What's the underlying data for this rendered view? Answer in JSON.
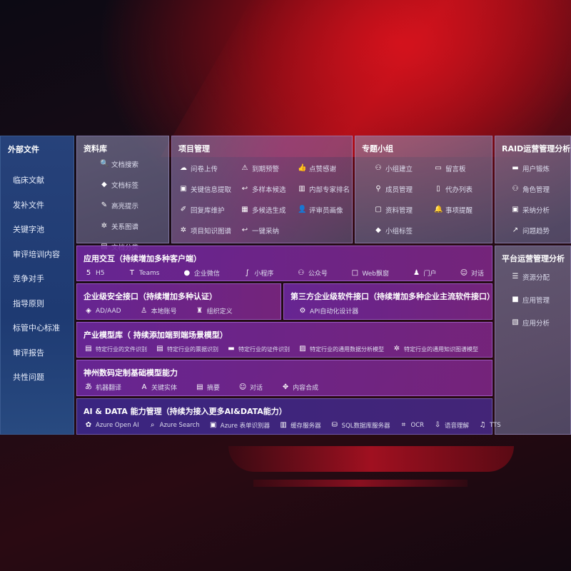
{
  "sidebar": {
    "title": "外部文件",
    "items": [
      "临床文献",
      "发补文件",
      "关键字池",
      "审评培训内容",
      "竞争对手",
      "指导原则",
      "标管中心标准",
      "审评报告",
      "共性问题"
    ]
  },
  "library": {
    "title": "资料库",
    "items": [
      {
        "icon": "doc-search-icon",
        "label": "文档搜索"
      },
      {
        "icon": "tag-icon",
        "label": "文档标签"
      },
      {
        "icon": "pen-icon",
        "label": "高亮提示"
      },
      {
        "icon": "graph-icon",
        "label": "关系图谱"
      },
      {
        "icon": "doc-category-icon",
        "label": "文档分类"
      }
    ]
  },
  "project": {
    "title": "项目管理",
    "items": [
      {
        "icon": "cloud-upload-icon",
        "label": "问卷上传"
      },
      {
        "icon": "alarm-icon",
        "label": "到期预警"
      },
      {
        "icon": "thumbs-up-icon",
        "label": "点赞感谢"
      },
      {
        "icon": "extract-icon",
        "label": "关键信息提取"
      },
      {
        "icon": "reply-icon",
        "label": "多样本候选"
      },
      {
        "icon": "ranking-icon",
        "label": "内部专家排名"
      },
      {
        "icon": "edit-icon",
        "label": "回复库维护"
      },
      {
        "icon": "puzzle-icon",
        "label": "多候选生成"
      },
      {
        "icon": "user-icon",
        "label": "评审员画像"
      },
      {
        "icon": "graph-icon",
        "label": "项目知识图谱"
      },
      {
        "icon": "reply-icon",
        "label": "一键采纳"
      }
    ]
  },
  "group": {
    "title": "专题小组",
    "items": [
      {
        "icon": "users-icon",
        "label": "小组建立"
      },
      {
        "icon": "bbs-icon",
        "label": "留言板"
      },
      {
        "icon": "user-add-icon",
        "label": "成员管理"
      },
      {
        "icon": "clipboard-icon",
        "label": "代办列表"
      },
      {
        "icon": "folder-icon",
        "label": "资料管理"
      },
      {
        "icon": "bell-icon",
        "label": "事项提醒"
      },
      {
        "icon": "tag-icon",
        "label": "小组标签"
      }
    ]
  },
  "raid": {
    "title": "RAID运营管理分析",
    "items": [
      {
        "icon": "id-card-icon",
        "label": "用户锻炼"
      },
      {
        "icon": "users-icon",
        "label": "角色管理"
      },
      {
        "icon": "qa-icon",
        "label": "采纳分析"
      },
      {
        "icon": "trend-icon",
        "label": "问题趋势"
      }
    ]
  },
  "platform": {
    "title": "平台运营管理分析",
    "items": [
      {
        "icon": "list-icon",
        "label": "资源分配"
      },
      {
        "icon": "apps-icon",
        "label": "应用管理"
      },
      {
        "icon": "analysis-icon",
        "label": "应用分析"
      }
    ]
  },
  "app": {
    "title": "应用交互（持续增加多种客户端）",
    "items": [
      {
        "icon": "html5-icon",
        "label": "H5"
      },
      {
        "icon": "teams-icon",
        "label": "Teams"
      },
      {
        "icon": "wechat-icon",
        "label": "企业微信"
      },
      {
        "icon": "miniprogram-icon",
        "label": "小程序"
      },
      {
        "icon": "users-icon",
        "label": "公众号"
      },
      {
        "icon": "window-icon",
        "label": "Web飘窗"
      },
      {
        "icon": "portal-icon",
        "label": "门户"
      },
      {
        "icon": "chat-icon",
        "label": "对话"
      }
    ]
  },
  "security": {
    "title": "企业级安全接口（持续增加多种认证）",
    "items": [
      {
        "icon": "ad-icon",
        "label": "AD/AAD"
      },
      {
        "icon": "account-icon",
        "label": "本地账号"
      },
      {
        "icon": "org-icon",
        "label": "组织定义"
      }
    ]
  },
  "thirdparty": {
    "title": "第三方企业级软件接口（持续增加多种企业主流软件接口）",
    "items": [
      {
        "icon": "gear-icon",
        "label": "API自动化设计器"
      }
    ]
  },
  "industry": {
    "title": "产业模型库（ 持续添加端到端场景模型）",
    "items": [
      {
        "icon": "doc-icon",
        "label": "特定行业的文件识别"
      },
      {
        "icon": "receipt-icon",
        "label": "特定行业的票据识别"
      },
      {
        "icon": "id-card-icon",
        "label": "特定行业的证件识别"
      },
      {
        "icon": "chart-icon",
        "label": "特定行业的通用数据分析模型"
      },
      {
        "icon": "graph-icon",
        "label": "特定行业的通用知识图谱模型"
      }
    ]
  },
  "base": {
    "title": "神州数码定制基础模型能力",
    "items": [
      {
        "icon": "translate-icon",
        "label": "机器翻译"
      },
      {
        "icon": "entity-icon",
        "label": "关键实体"
      },
      {
        "icon": "summary-icon",
        "label": "摘要"
      },
      {
        "icon": "chat-icon",
        "label": "对话"
      },
      {
        "icon": "compose-icon",
        "label": "内容合成"
      }
    ]
  },
  "aidata": {
    "title": "AI & DATA 能力管理（持续为接入更多AI&DATA能力）",
    "items": [
      {
        "icon": "openai-icon",
        "label": "Azure Open AI"
      },
      {
        "icon": "search-icon",
        "label": "Azure Search"
      },
      {
        "icon": "form-icon",
        "label": "Azure 表单识别器"
      },
      {
        "icon": "cache-icon",
        "label": "缓存服务器"
      },
      {
        "icon": "sql-icon",
        "label": "SQL数据库服务器"
      },
      {
        "icon": "ocr-icon",
        "label": "OCR"
      },
      {
        "icon": "speech-icon",
        "label": "语音理解"
      },
      {
        "icon": "tts-icon",
        "label": "TTS"
      }
    ]
  }
}
